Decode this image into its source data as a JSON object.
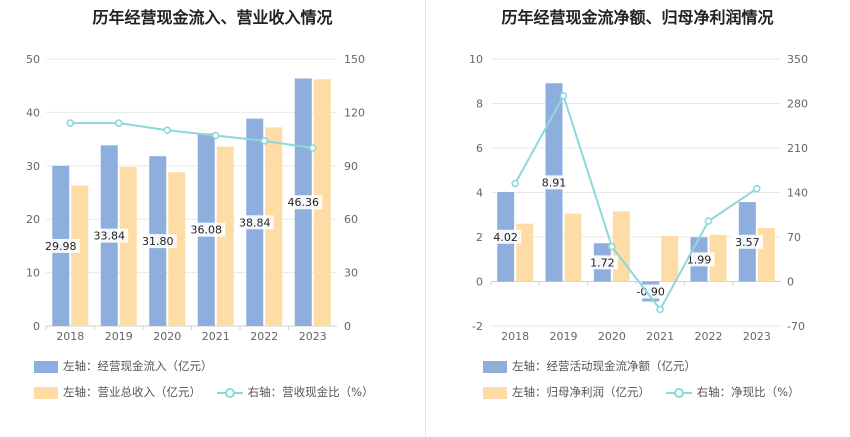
{
  "chart_data": [
    {
      "type": "bar",
      "title": "历年经营现金流入、营业收入情况",
      "categories": [
        "2018",
        "2019",
        "2020",
        "2021",
        "2022",
        "2023"
      ],
      "series": [
        {
          "name": "左轴：经营现金流入（亿元）",
          "axis": "left",
          "values": [
            29.98,
            33.84,
            31.8,
            36.08,
            38.84,
            46.36
          ],
          "color": "#8eaedd",
          "labels": [
            "29.98",
            "33.84",
            "31.80",
            "36.08",
            "38.84",
            "46.36"
          ]
        },
        {
          "name": "左轴：营业总收入（亿元）",
          "axis": "left",
          "values": [
            26.3,
            29.8,
            28.8,
            33.6,
            37.2,
            46.2
          ],
          "color": "#fddda5"
        },
        {
          "name": "右轴：营收现金比（%）",
          "axis": "right",
          "type": "line",
          "values": [
            114,
            114,
            110,
            107,
            104,
            100
          ],
          "color": "#8ed8dc"
        }
      ],
      "yleft": {
        "min": 0,
        "max": 50,
        "ticks": [
          "0",
          "10",
          "20",
          "30",
          "40",
          "50"
        ]
      },
      "yright": {
        "min": 0,
        "max": 150,
        "ticks": [
          "0",
          "30",
          "60",
          "90",
          "120",
          "150"
        ]
      }
    },
    {
      "type": "bar",
      "title": "历年经营现金流净额、归母净利润情况",
      "categories": [
        "2018",
        "2019",
        "2020",
        "2021",
        "2022",
        "2023"
      ],
      "series": [
        {
          "name": "左轴：经营活动现金流净额（亿元）",
          "axis": "left",
          "values": [
            4.02,
            8.91,
            1.72,
            -0.9,
            1.99,
            3.57
          ],
          "color": "#8eaedd",
          "labels": [
            "4.02",
            "8.91",
            "1.72",
            "-0.90",
            "1.99",
            "3.57"
          ]
        },
        {
          "name": "左轴：归母净利润（亿元）",
          "axis": "left",
          "values": [
            2.6,
            3.05,
            3.15,
            2.05,
            2.1,
            2.4
          ],
          "color": "#fddda5"
        },
        {
          "name": "右轴：净现比（%）",
          "axis": "right",
          "type": "line",
          "values": [
            154,
            292,
            55,
            -44,
            95,
            146
          ],
          "color": "#8ed8dc"
        }
      ],
      "yleft": {
        "min": -2,
        "max": 10,
        "ticks": [
          "-2",
          "0",
          "2",
          "4",
          "6",
          "8",
          "10"
        ]
      },
      "yright": {
        "min": -70,
        "max": 350,
        "ticks": [
          "-70",
          "0",
          "70",
          "140",
          "210",
          "280",
          "350"
        ]
      }
    }
  ]
}
